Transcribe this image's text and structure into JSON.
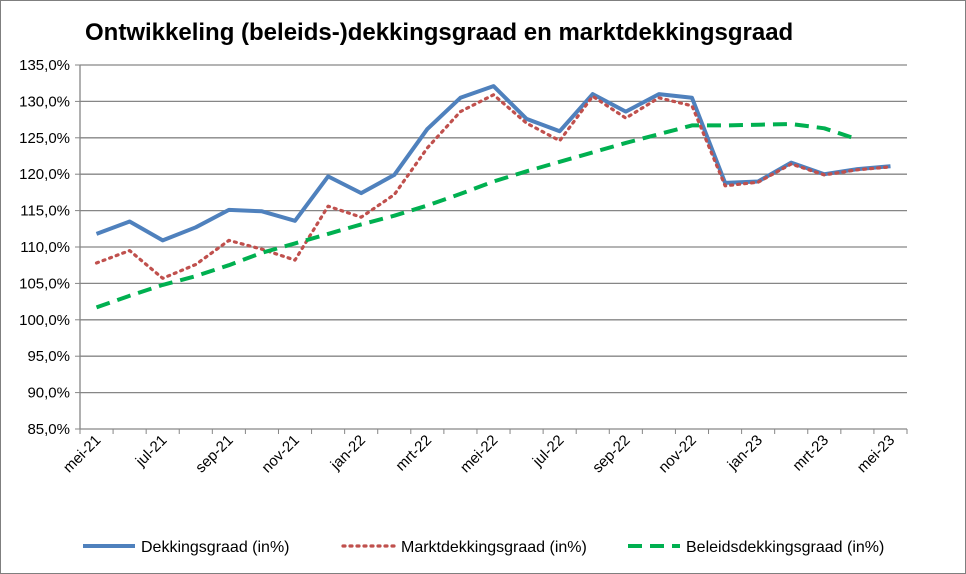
{
  "chart_data": {
    "type": "line",
    "title": "Ontwikkeling (beleids-)dekkingsgraad en marktdekkingsgraad",
    "xlabel": "",
    "ylabel": "",
    "ylim": [
      85,
      135
    ],
    "y_ticks": [
      "85,0%",
      "90,0%",
      "95,0%",
      "100,0%",
      "105,0%",
      "110,0%",
      "115,0%",
      "120,0%",
      "125,0%",
      "130,0%",
      "135,0%"
    ],
    "x_tick_labels": [
      "mei-21",
      "jul-21",
      "sep-21",
      "nov-21",
      "jan-22",
      "mrt-22",
      "mei-22",
      "jul-22",
      "sep-22",
      "nov-22",
      "jan-23",
      "mrt-23",
      "mei-23"
    ],
    "categories": [
      "mei-21",
      "jun-21",
      "jul-21",
      "aug-21",
      "sep-21",
      "okt-21",
      "nov-21",
      "dec-21",
      "jan-22",
      "feb-22",
      "mrt-22",
      "apr-22",
      "mei-22",
      "jun-22",
      "jul-22",
      "aug-22",
      "sep-22",
      "okt-22",
      "nov-22",
      "dec-22",
      "jan-23",
      "feb-23",
      "mrt-23",
      "apr-23",
      "mei-23"
    ],
    "grid": true,
    "legend_position": "bottom",
    "series": [
      {
        "name": "Dekkingsgraad (in%)",
        "color": "#4f81bd",
        "style": "solid",
        "values": [
          111.8,
          113.5,
          110.9,
          112.7,
          115.1,
          114.9,
          113.6,
          119.7,
          117.4,
          119.9,
          126.2,
          130.5,
          132.1,
          127.6,
          125.9,
          131.0,
          128.6,
          131.0,
          130.5,
          118.8,
          119.0,
          121.6,
          120.0,
          120.7,
          121.1
        ]
      },
      {
        "name": "Marktdekkingsgraad (in%)",
        "color": "#c0504d",
        "style": "dotted",
        "values": [
          107.8,
          109.5,
          105.7,
          107.6,
          110.9,
          109.7,
          108.2,
          115.6,
          114.1,
          117.2,
          123.6,
          128.6,
          130.9,
          127.0,
          124.6,
          130.7,
          127.7,
          130.5,
          129.4,
          118.4,
          118.9,
          121.4,
          119.9,
          120.6,
          121.0
        ]
      },
      {
        "name": "Beleidsdekkingsgraad (in%)",
        "color": "#00b050",
        "style": "dashed",
        "values": [
          101.7,
          103.3,
          104.8,
          106.0,
          107.5,
          109.2,
          110.5,
          111.8,
          113.1,
          114.3,
          115.7,
          117.3,
          119.0,
          120.4,
          121.7,
          123.0,
          124.3,
          125.5,
          126.7,
          126.7,
          126.8,
          126.9,
          126.3,
          124.8,
          null
        ]
      }
    ]
  }
}
